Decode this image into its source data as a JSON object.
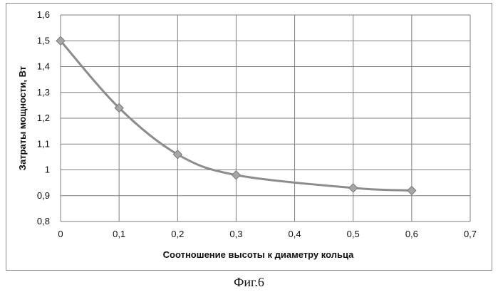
{
  "chart_data": {
    "type": "line",
    "x": [
      0,
      0.1,
      0.2,
      0.3,
      0.5,
      0.6
    ],
    "y": [
      1.5,
      1.24,
      1.06,
      0.98,
      0.93,
      0.92
    ],
    "xlim": [
      0,
      0.7
    ],
    "ylim": [
      0.8,
      1.6
    ],
    "xticks": [
      0,
      0.1,
      0.2,
      0.3,
      0.4,
      0.5,
      0.6,
      0.7
    ],
    "yticks": [
      0.8,
      0.9,
      1.0,
      1.1,
      1.2,
      1.3,
      1.4,
      1.5,
      1.6
    ],
    "xtick_labels": [
      "0",
      "0,1",
      "0,2",
      "0,3",
      "0,4",
      "0,5",
      "0,6",
      "0,7"
    ],
    "ytick_labels": [
      "0,8",
      "0,9",
      "1",
      "1,1",
      "1,2",
      "1,3",
      "1,4",
      "1,5",
      "1,6"
    ],
    "xlabel": "Соотношение высоты к диаметру кольца",
    "ylabel": "Затраты мощности, Вт",
    "grid": true,
    "marker": "diamond",
    "line_color": "#8c8c8c",
    "marker_color": "#a6a6a6"
  },
  "caption": "Фиг.6"
}
